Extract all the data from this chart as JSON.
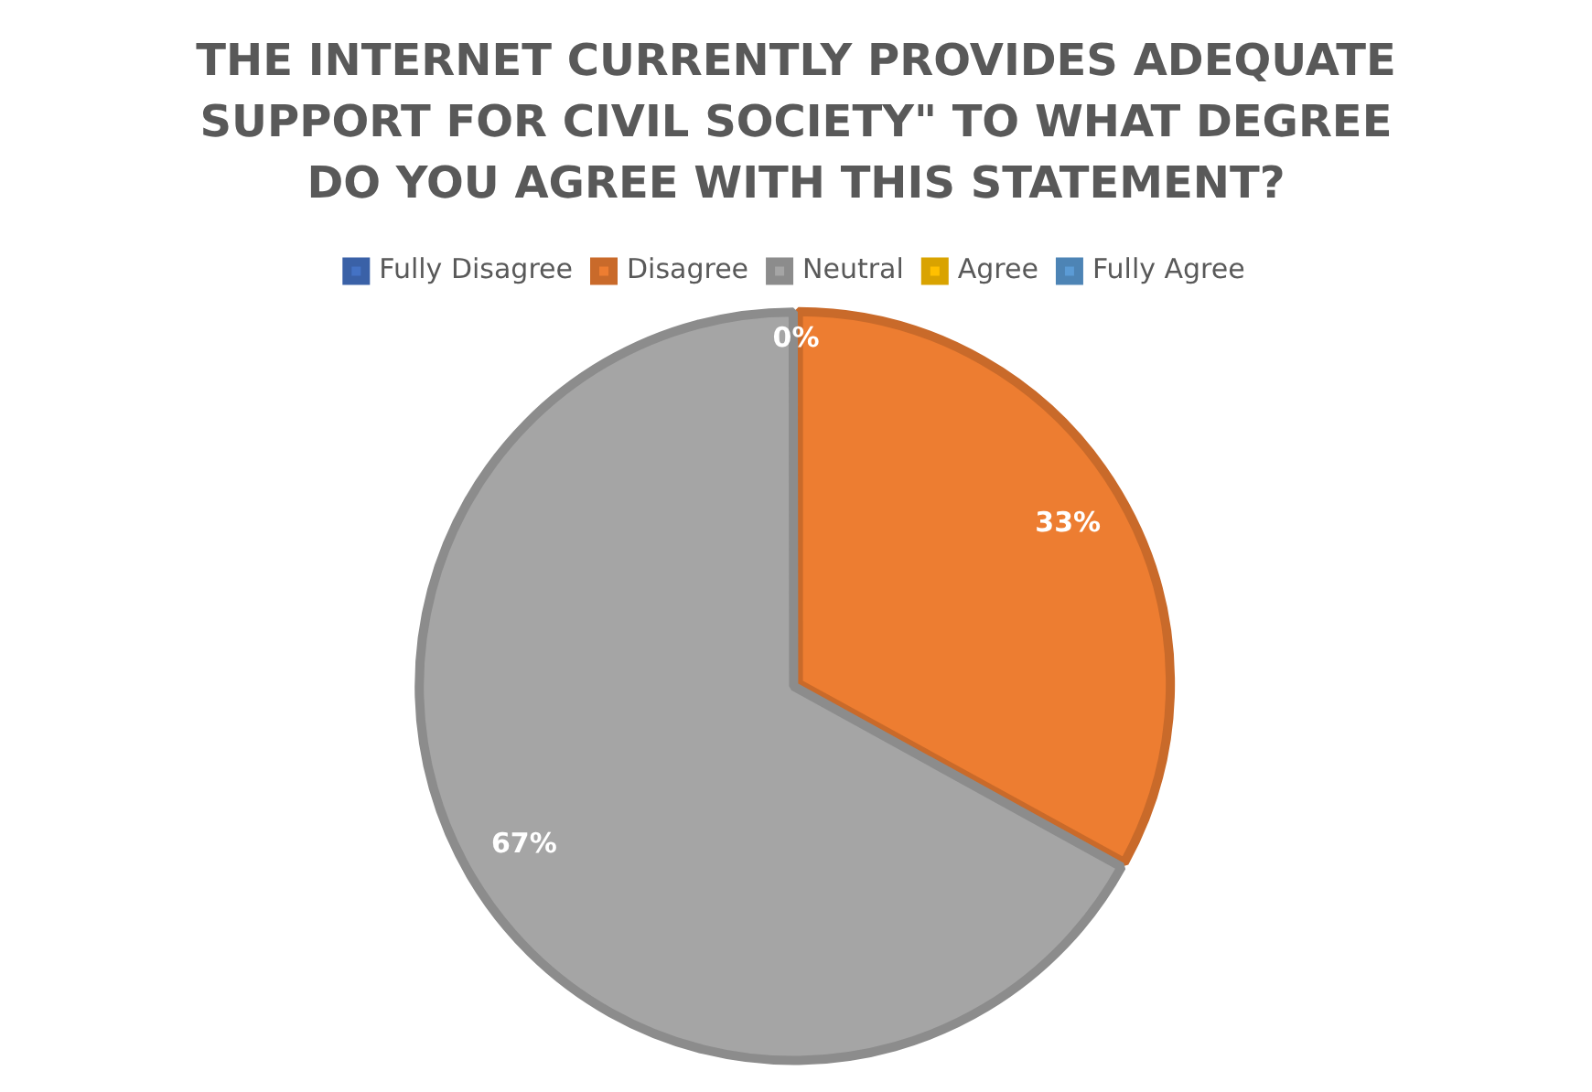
{
  "chart_data": {
    "type": "pie",
    "title": "THE INTERNET CURRENTLY PROVIDES ADEQUATE SUPPORT FOR CIVIL SOCIETY\" TO WHAT DEGREE DO YOU AGREE WITH THIS STATEMENT?",
    "categories": [
      "Fully Disagree",
      "Disagree",
      "Neutral",
      "Agree",
      "Fully Agree"
    ],
    "values": [
      0,
      33,
      67,
      0,
      0
    ],
    "colors": [
      "#4472c4",
      "#ed7d31",
      "#a5a5a5",
      "#ffc000",
      "#5b9bd5"
    ],
    "value_labels": [
      "0%",
      "33%",
      "67%",
      null,
      null
    ],
    "legend": "top"
  }
}
